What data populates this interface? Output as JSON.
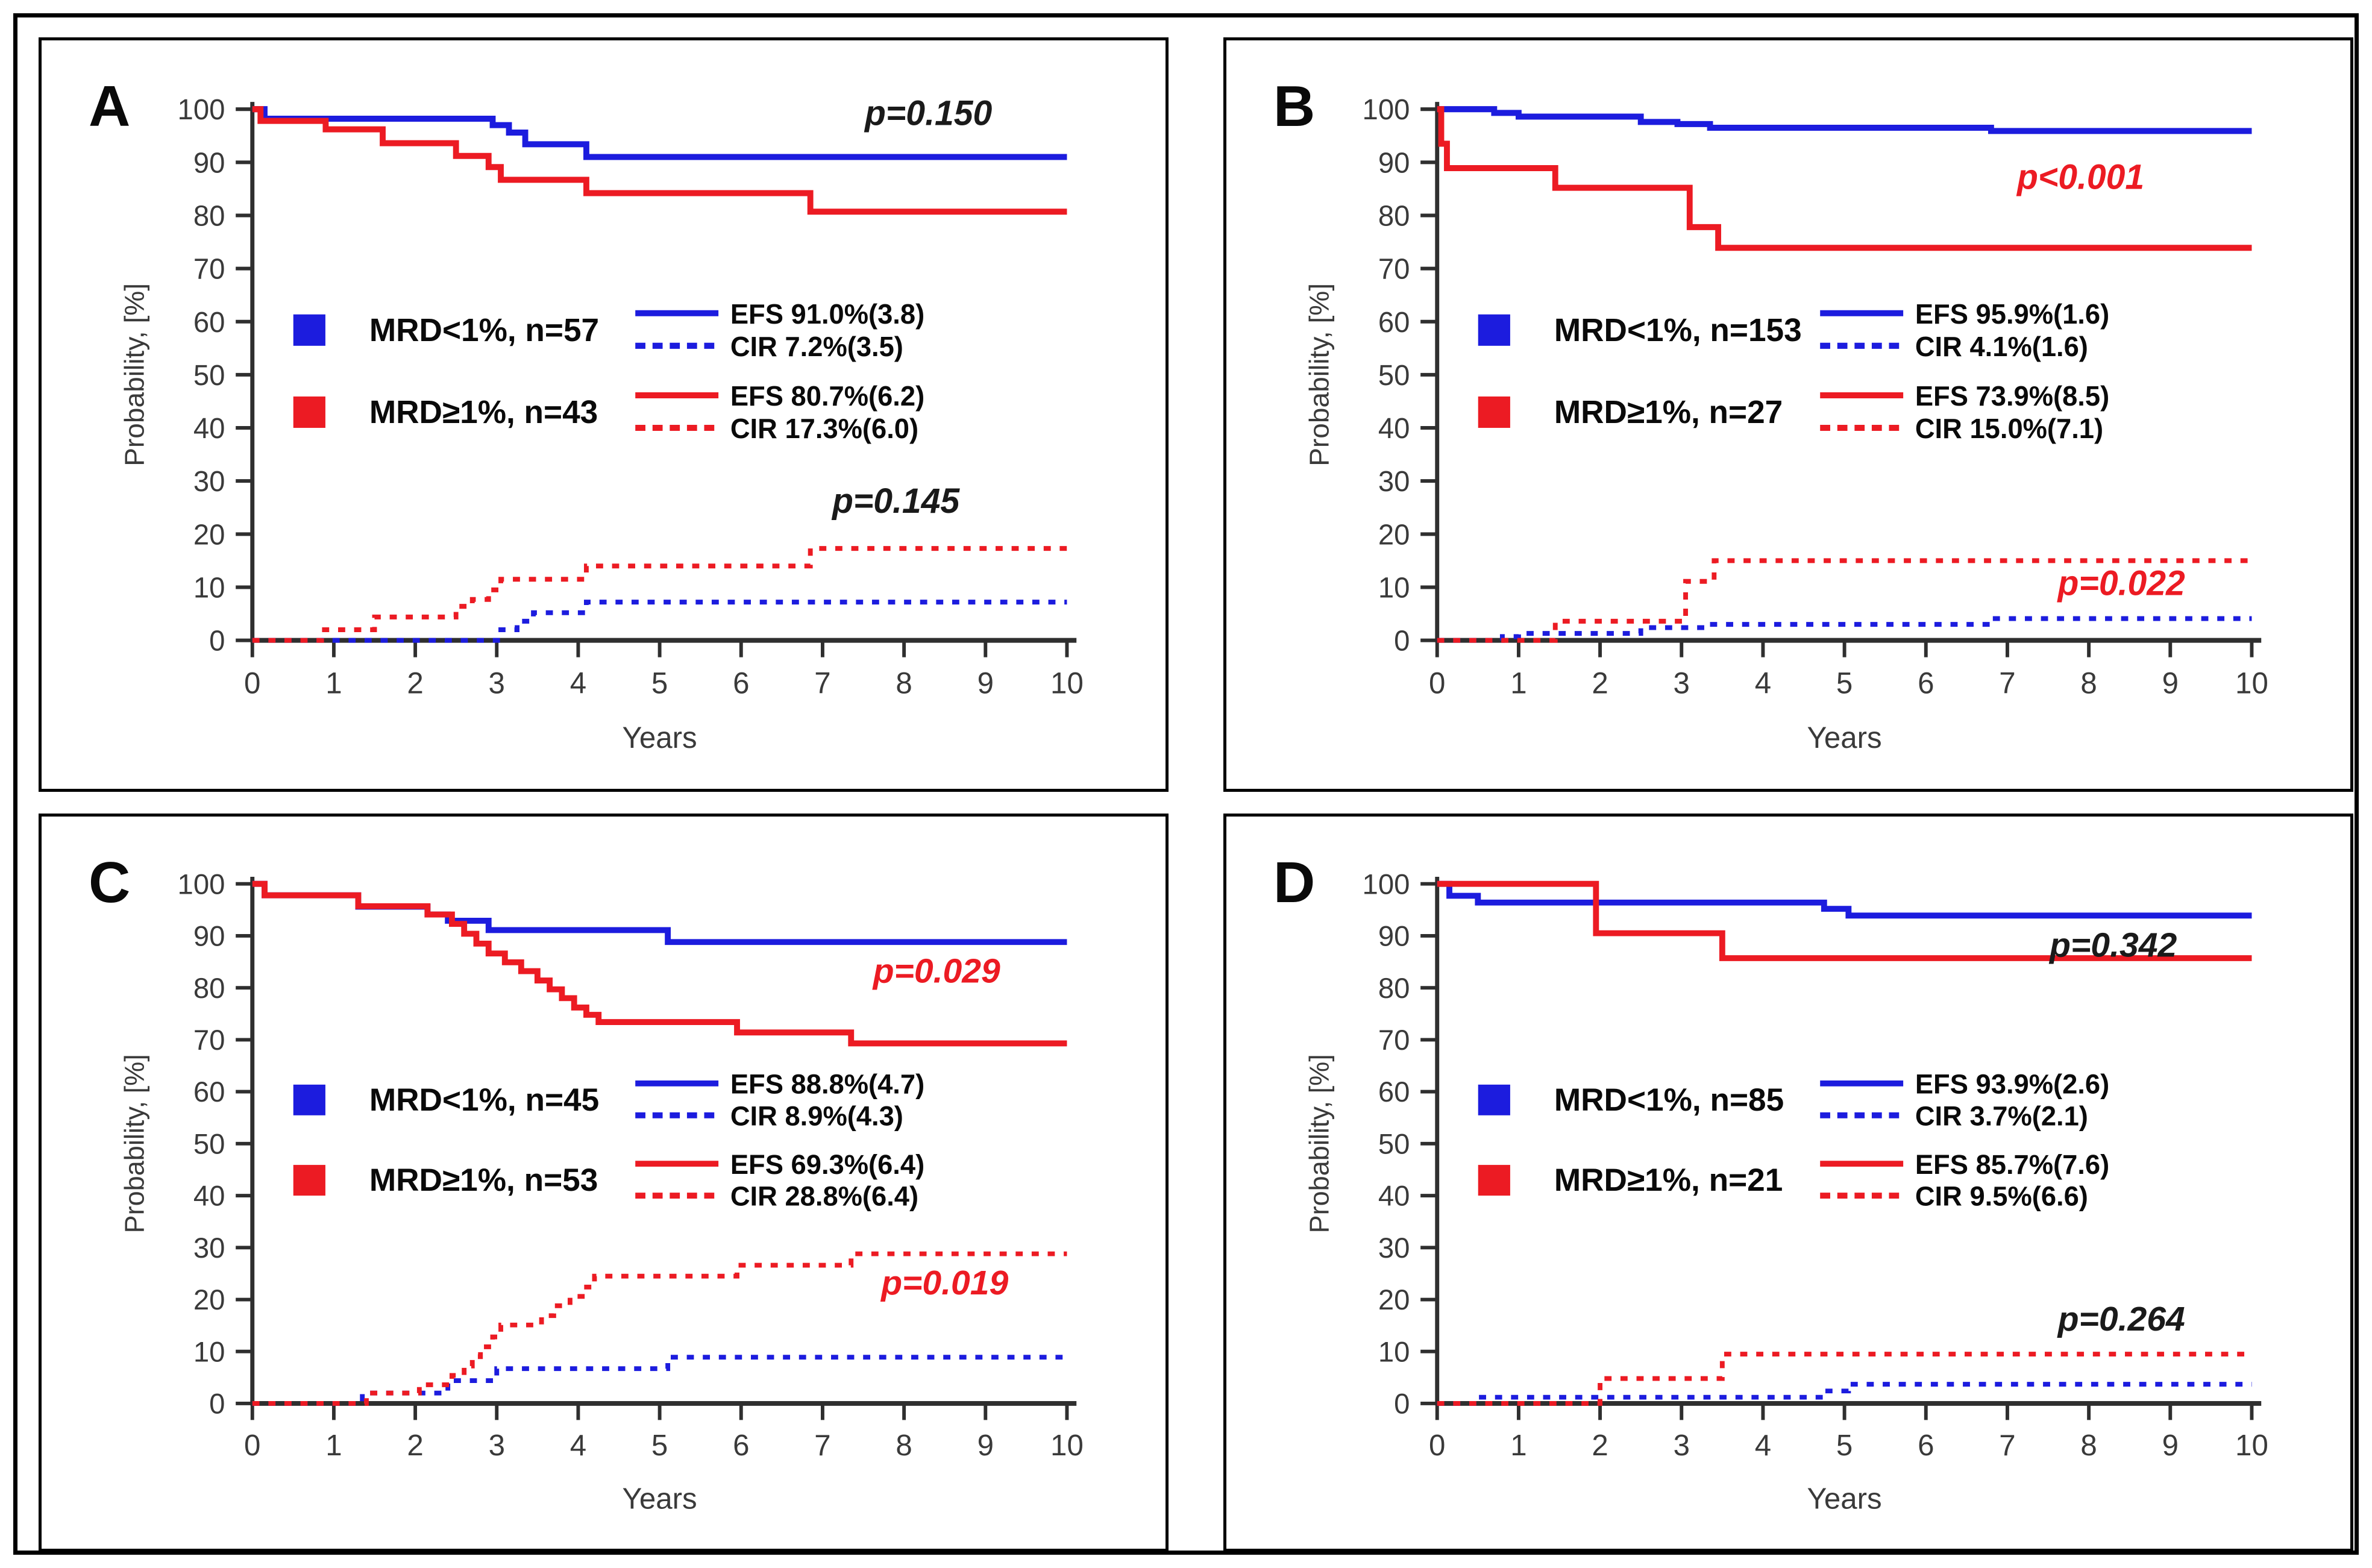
{
  "figure": {
    "background": "#ffffff",
    "border_color": "#000000"
  },
  "colors": {
    "blue": "#1C1CDE",
    "red": "#EC1B23",
    "axis": "#2f2f2f",
    "tick_text": "#3a3a3a",
    "black": "#1a1a1a"
  },
  "chart_data": [
    {
      "panel": "A",
      "type": "line",
      "subtype": "kaplan-meier-step",
      "x_label": "Years",
      "y_label": "Probability, [%]",
      "xlim": [
        0,
        10
      ],
      "ylim": [
        0,
        100
      ],
      "x_ticks": [
        0,
        1,
        2,
        3,
        4,
        5,
        6,
        7,
        8,
        9,
        10
      ],
      "y_ticks": [
        0,
        10,
        20,
        30,
        40,
        50,
        60,
        70,
        80,
        90,
        100
      ],
      "grid": false,
      "legend": {
        "groups": [
          {
            "color": "blue",
            "label": "MRD<1%,  n=57",
            "entries": [
              {
                "style": "solid",
                "label": "EFS 91.0%(3.8)"
              },
              {
                "style": "dashed",
                "label": "CIR 7.2%(3.5)"
              }
            ]
          },
          {
            "color": "red",
            "label": "MRD≥1%,  n=43",
            "entries": [
              {
                "style": "solid",
                "label": "EFS 80.7%(6.2)"
              },
              {
                "style": "dashed",
                "label": "CIR 17.3%(6.0)"
              }
            ]
          }
        ]
      },
      "annotations": [
        {
          "text": "p=0.150",
          "color": "black",
          "x": 8.3,
          "y": 97
        },
        {
          "text": "p=0.145",
          "color": "black",
          "x": 7.9,
          "y": 24
        }
      ],
      "series": [
        {
          "id": "efs-mrd-lt1",
          "name": "EFS MRD<1%",
          "color": "blue",
          "style": "solid",
          "points": [
            [
              0,
              100
            ],
            [
              0.15,
              98.2
            ],
            [
              2.95,
              97.0
            ],
            [
              3.15,
              95.6
            ],
            [
              3.35,
              93.4
            ],
            [
              4.1,
              91.0
            ],
            [
              10,
              91.0
            ]
          ]
        },
        {
          "id": "efs-mrd-ge1",
          "name": "EFS MRD≥1%",
          "color": "red",
          "style": "solid",
          "points": [
            [
              0,
              100
            ],
            [
              0.1,
              97.8
            ],
            [
              0.9,
              96.2
            ],
            [
              1.6,
              93.6
            ],
            [
              2.5,
              91.2
            ],
            [
              2.9,
              89.1
            ],
            [
              3.05,
              86.7
            ],
            [
              4.1,
              84.2
            ],
            [
              6.85,
              80.7
            ],
            [
              10,
              80.7
            ]
          ]
        },
        {
          "id": "cir-mrd-lt1",
          "name": "CIR MRD<1%",
          "color": "blue",
          "style": "dashed",
          "points": [
            [
              0,
              0
            ],
            [
              3.05,
              2.0
            ],
            [
              3.25,
              3.6
            ],
            [
              3.45,
              5.2
            ],
            [
              4.1,
              7.2
            ],
            [
              10,
              7.2
            ]
          ]
        },
        {
          "id": "cir-mrd-ge1",
          "name": "CIR MRD≥1%",
          "color": "red",
          "style": "dashed",
          "points": [
            [
              0,
              0
            ],
            [
              0.85,
              2.0
            ],
            [
              1.5,
              4.4
            ],
            [
              2.5,
              6.4
            ],
            [
              2.7,
              7.7
            ],
            [
              2.9,
              9.5
            ],
            [
              3.05,
              11.5
            ],
            [
              4.1,
              14.0
            ],
            [
              6.85,
              17.3
            ],
            [
              10,
              17.3
            ]
          ]
        }
      ]
    },
    {
      "panel": "B",
      "type": "line",
      "subtype": "kaplan-meier-step",
      "x_label": "Years",
      "y_label": "Probability, [%]",
      "xlim": [
        0,
        10
      ],
      "ylim": [
        0,
        100
      ],
      "x_ticks": [
        0,
        1,
        2,
        3,
        4,
        5,
        6,
        7,
        8,
        9,
        10
      ],
      "y_ticks": [
        0,
        10,
        20,
        30,
        40,
        50,
        60,
        70,
        80,
        90,
        100
      ],
      "grid": false,
      "legend": {
        "groups": [
          {
            "color": "blue",
            "label": "MRD<1%,  n=153",
            "entries": [
              {
                "style": "solid",
                "label": "EFS 95.9%(1.6)"
              },
              {
                "style": "dashed",
                "label": "CIR 4.1%(1.6)"
              }
            ]
          },
          {
            "color": "red",
            "label": "MRD≥1%,  n=27",
            "entries": [
              {
                "style": "solid",
                "label": "EFS 73.9%(8.5)"
              },
              {
                "style": "dashed",
                "label": "CIR 15.0%(7.1)"
              }
            ]
          }
        ]
      },
      "annotations": [
        {
          "text": "p<0.001",
          "color": "red",
          "x": 7.9,
          "y": 85
        },
        {
          "text": "p=0.022",
          "color": "red",
          "x": 8.4,
          "y": 8.5
        }
      ],
      "series": [
        {
          "id": "efs-mrd-lt1",
          "name": "EFS MRD<1%",
          "color": "blue",
          "style": "solid",
          "points": [
            [
              0,
              100
            ],
            [
              0.7,
              99.3
            ],
            [
              1.0,
              98.6
            ],
            [
              2.5,
              97.6
            ],
            [
              2.95,
              97.2
            ],
            [
              3.35,
              96.5
            ],
            [
              6.8,
              95.9
            ],
            [
              10,
              95.9
            ]
          ]
        },
        {
          "id": "efs-mrd-ge1",
          "name": "EFS MRD≥1%",
          "color": "red",
          "style": "solid",
          "points": [
            [
              0,
              100
            ],
            [
              0.05,
              93.5
            ],
            [
              0.12,
              88.9
            ],
            [
              1.45,
              85.2
            ],
            [
              3.1,
              77.8
            ],
            [
              3.45,
              73.9
            ],
            [
              10,
              73.9
            ]
          ]
        },
        {
          "id": "cir-mrd-lt1",
          "name": "CIR MRD<1%",
          "color": "blue",
          "style": "dashed",
          "points": [
            [
              0,
              0
            ],
            [
              0.8,
              0.7
            ],
            [
              1.0,
              1.3
            ],
            [
              2.5,
              2.4
            ],
            [
              3.3,
              3.0
            ],
            [
              6.8,
              4.1
            ],
            [
              10,
              4.1
            ]
          ]
        },
        {
          "id": "cir-mrd-ge1",
          "name": "CIR MRD≥1%",
          "color": "red",
          "style": "dashed",
          "points": [
            [
              0,
              0
            ],
            [
              1.45,
              3.6
            ],
            [
              3.05,
              11.1
            ],
            [
              3.4,
              15.0
            ],
            [
              10,
              15.0
            ]
          ]
        }
      ]
    },
    {
      "panel": "C",
      "type": "line",
      "subtype": "kaplan-meier-step",
      "x_label": "Years",
      "y_label": "Probability, [%]",
      "xlim": [
        0,
        10
      ],
      "ylim": [
        0,
        100
      ],
      "x_ticks": [
        0,
        1,
        2,
        3,
        4,
        5,
        6,
        7,
        8,
        9,
        10
      ],
      "y_ticks": [
        0,
        10,
        20,
        30,
        40,
        50,
        60,
        70,
        80,
        90,
        100
      ],
      "grid": false,
      "legend": {
        "groups": [
          {
            "color": "blue",
            "label": "MRD<1%,  n=45",
            "entries": [
              {
                "style": "solid",
                "label": "EFS 88.8%(4.7)"
              },
              {
                "style": "dashed",
                "label": "CIR 8.9%(4.3)"
              }
            ]
          },
          {
            "color": "red",
            "label": "MRD≥1%,  n=53",
            "entries": [
              {
                "style": "solid",
                "label": "EFS 69.3%(6.4)"
              },
              {
                "style": "dashed",
                "label": "CIR 28.8%(6.4)"
              }
            ]
          }
        ]
      },
      "annotations": [
        {
          "text": "p=0.029",
          "color": "red",
          "x": 8.4,
          "y": 81
        },
        {
          "text": "p=0.019",
          "color": "red",
          "x": 8.5,
          "y": 21
        }
      ],
      "series": [
        {
          "id": "efs-mrd-lt1",
          "name": "EFS MRD<1%",
          "color": "blue",
          "style": "solid",
          "points": [
            [
              0,
              100
            ],
            [
              0.15,
              97.8
            ],
            [
              1.3,
              95.6
            ],
            [
              2.15,
              94.1
            ],
            [
              2.4,
              92.9
            ],
            [
              2.9,
              91.1
            ],
            [
              5.1,
              88.8
            ],
            [
              10,
              88.8
            ]
          ]
        },
        {
          "id": "efs-mrd-ge1",
          "name": "EFS MRD≥1%",
          "color": "red",
          "style": "solid",
          "points": [
            [
              0,
              100
            ],
            [
              0.15,
              97.8
            ],
            [
              1.3,
              95.7
            ],
            [
              2.15,
              94.1
            ],
            [
              2.45,
              92.3
            ],
            [
              2.6,
              90.4
            ],
            [
              2.75,
              88.5
            ],
            [
              2.9,
              86.6
            ],
            [
              3.1,
              84.9
            ],
            [
              3.3,
              83.2
            ],
            [
              3.5,
              81.4
            ],
            [
              3.65,
              79.7
            ],
            [
              3.8,
              78.0
            ],
            [
              3.95,
              76.2
            ],
            [
              4.1,
              74.8
            ],
            [
              4.25,
              73.4
            ],
            [
              5.95,
              71.4
            ],
            [
              7.35,
              69.3
            ],
            [
              10,
              69.3
            ]
          ]
        },
        {
          "id": "cir-mrd-lt1",
          "name": "CIR MRD<1%",
          "color": "blue",
          "style": "dashed",
          "points": [
            [
              0,
              0
            ],
            [
              1.35,
              2.0
            ],
            [
              2.4,
              4.4
            ],
            [
              3.0,
              6.7
            ],
            [
              5.1,
              8.9
            ],
            [
              10,
              8.9
            ]
          ]
        },
        {
          "id": "cir-mrd-ge1",
          "name": "CIR MRD≥1%",
          "color": "red",
          "style": "dashed",
          "points": [
            [
              0,
              0
            ],
            [
              1.4,
              2.0
            ],
            [
              2.05,
              3.6
            ],
            [
              2.45,
              5.4
            ],
            [
              2.6,
              7.2
            ],
            [
              2.7,
              9.0
            ],
            [
              2.8,
              10.9
            ],
            [
              2.95,
              12.8
            ],
            [
              3.05,
              15.1
            ],
            [
              3.55,
              16.9
            ],
            [
              3.7,
              18.8
            ],
            [
              3.9,
              20.6
            ],
            [
              4.05,
              22.4
            ],
            [
              4.2,
              24.5
            ],
            [
              5.95,
              26.6
            ],
            [
              7.35,
              28.8
            ],
            [
              10,
              28.8
            ]
          ]
        }
      ]
    },
    {
      "panel": "D",
      "type": "line",
      "subtype": "kaplan-meier-step",
      "x_label": "Years",
      "y_label": "Probability, [%]",
      "xlim": [
        0,
        10
      ],
      "ylim": [
        0,
        100
      ],
      "x_ticks": [
        0,
        1,
        2,
        3,
        4,
        5,
        6,
        7,
        8,
        9,
        10
      ],
      "y_ticks": [
        0,
        10,
        20,
        30,
        40,
        50,
        60,
        70,
        80,
        90,
        100
      ],
      "grid": false,
      "legend": {
        "groups": [
          {
            "color": "blue",
            "label": "MRD<1%,  n=85",
            "entries": [
              {
                "style": "solid",
                "label": "EFS 93.9%(2.6)"
              },
              {
                "style": "dashed",
                "label": "CIR 3.7%(2.1)"
              }
            ]
          },
          {
            "color": "red",
            "label": "MRD≥1%,  n=21",
            "entries": [
              {
                "style": "solid",
                "label": "EFS 85.7%(7.6)"
              },
              {
                "style": "dashed",
                "label": "CIR 9.5%(6.6)"
              }
            ]
          }
        ]
      },
      "annotations": [
        {
          "text": "p=0.342",
          "color": "black",
          "x": 8.3,
          "y": 86
        },
        {
          "text": "p=0.264",
          "color": "black",
          "x": 8.4,
          "y": 14
        }
      ],
      "series": [
        {
          "id": "efs-mrd-lt1",
          "name": "EFS MRD<1%",
          "color": "blue",
          "style": "solid",
          "points": [
            [
              0,
              100
            ],
            [
              0.15,
              97.7
            ],
            [
              0.5,
              96.4
            ],
            [
              4.75,
              95.2
            ],
            [
              5.05,
              93.9
            ],
            [
              10,
              93.9
            ]
          ]
        },
        {
          "id": "efs-mrd-ge1",
          "name": "EFS MRD≥1%",
          "color": "red",
          "style": "solid",
          "points": [
            [
              0,
              100
            ],
            [
              1.95,
              90.5
            ],
            [
              3.5,
              85.7
            ],
            [
              10,
              85.7
            ]
          ]
        },
        {
          "id": "cir-mrd-lt1",
          "name": "CIR MRD<1%",
          "color": "blue",
          "style": "dashed",
          "points": [
            [
              0,
              0
            ],
            [
              0.5,
              1.2
            ],
            [
              4.75,
              2.4
            ],
            [
              5.05,
              3.7
            ],
            [
              10,
              3.7
            ]
          ]
        },
        {
          "id": "cir-mrd-ge1",
          "name": "CIR MRD≥1%",
          "color": "red",
          "style": "dashed",
          "points": [
            [
              0,
              0
            ],
            [
              2.0,
              4.8
            ],
            [
              3.5,
              9.5
            ],
            [
              10,
              9.5
            ]
          ]
        }
      ]
    }
  ]
}
